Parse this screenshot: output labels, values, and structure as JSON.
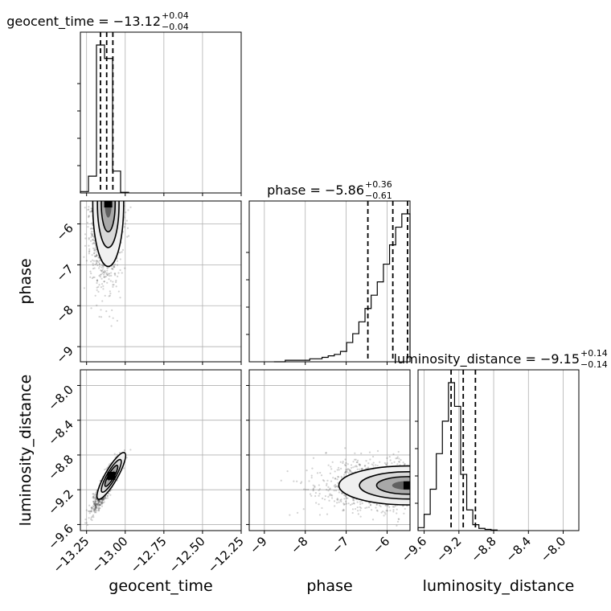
{
  "chart_data": {
    "type": "corner",
    "parameters": [
      "geocent_time",
      "phase",
      "luminosity_distance"
    ],
    "ranges": {
      "geocent_time": [
        -13.29,
        -12.25
      ],
      "phase": [
        -9.37,
        -5.44
      ],
      "luminosity_distance": [
        -9.67,
        -7.82
      ]
    },
    "ticks": {
      "geocent_time": {
        "values": [
          -13.25,
          -13.0,
          -12.75,
          -12.5,
          -12.25
        ],
        "labels": [
          "−13.25",
          "−13.00",
          "−12.75",
          "−12.50",
          "−12.25"
        ]
      },
      "phase": {
        "values": [
          -9,
          -8,
          -7,
          -6
        ],
        "labels": [
          "−9",
          "−8",
          "−7",
          "−6"
        ]
      },
      "luminosity_distance": {
        "values": [
          -9.6,
          -9.2,
          -8.8,
          -8.4,
          -8.0
        ],
        "labels": [
          "−9.6",
          "−9.2",
          "−8.8",
          "−8.4",
          "−8.0"
        ]
      }
    },
    "titles": [
      {
        "name": "geocent_time",
        "median": "−13.12",
        "plus": "+0.04",
        "minus": "−0.04"
      },
      {
        "name": "phase",
        "median": "−5.86",
        "plus": "+0.36",
        "minus": "−0.61"
      },
      {
        "name": "luminosity_distance",
        "median": "−9.15",
        "plus": "+0.14",
        "minus": "−0.14"
      }
    ],
    "histograms": {
      "geocent_time": {
        "bin_edges": [
          -13.29,
          -13.238,
          -13.186,
          -13.134,
          -13.082,
          -13.03,
          -12.978
        ],
        "counts": [
          0.008,
          0.1,
          0.88,
          0.8,
          0.13,
          0.004
        ],
        "quantiles": [
          -13.16,
          -13.12,
          -13.08
        ]
      },
      "phase": {
        "bin_edges": [
          -8.49,
          -8.19,
          -7.89,
          -7.59,
          -7.44,
          -7.29,
          -7.14,
          -6.99,
          -6.84,
          -6.69,
          -6.54,
          -6.39,
          -6.24,
          -6.09,
          -5.94,
          -5.79,
          -5.64,
          -5.54,
          -5.44
        ],
        "counts": [
          0.01,
          0.01,
          0.02,
          0.03,
          0.04,
          0.05,
          0.07,
          0.13,
          0.19,
          0.27,
          0.36,
          0.45,
          0.54,
          0.66,
          0.79,
          0.91,
          1.0,
          1.0
        ],
        "quantiles": [
          -6.47,
          -5.86,
          -5.5
        ]
      },
      "luminosity_distance": {
        "bin_edges": [
          -9.67,
          -9.6,
          -9.53,
          -9.46,
          -9.39,
          -9.32,
          -9.25,
          -9.18,
          -9.11,
          -9.04,
          -8.97,
          -8.9,
          -8.83,
          -8.76
        ],
        "counts": [
          0.02,
          0.11,
          0.28,
          0.52,
          0.74,
          1.0,
          0.84,
          0.38,
          0.14,
          0.04,
          0.015,
          0.008,
          0.004
        ],
        "quantiles": [
          -9.29,
          -9.15,
          -9.01
        ]
      }
    },
    "joint_distributions": [
      {
        "x": "geocent_time",
        "y": "phase",
        "center": [
          -13.125,
          -5.55
        ],
        "spread": [
          0.05,
          0.55
        ],
        "correlation": 0.0,
        "peak": [
          -13.11,
          -5.5
        ]
      },
      {
        "x": "geocent_time",
        "y": "luminosity_distance",
        "center": [
          -13.125,
          -9.15
        ],
        "spread": [
          0.045,
          0.14
        ],
        "correlation": 0.9,
        "peak": [
          -13.09,
          -9.04
        ]
      },
      {
        "x": "phase",
        "y": "luminosity_distance",
        "center": [
          -5.5,
          -9.15
        ],
        "spread": [
          0.6,
          0.14
        ],
        "correlation": 0.0,
        "peak": [
          -5.5,
          -9.15
        ]
      }
    ],
    "grid": true
  }
}
